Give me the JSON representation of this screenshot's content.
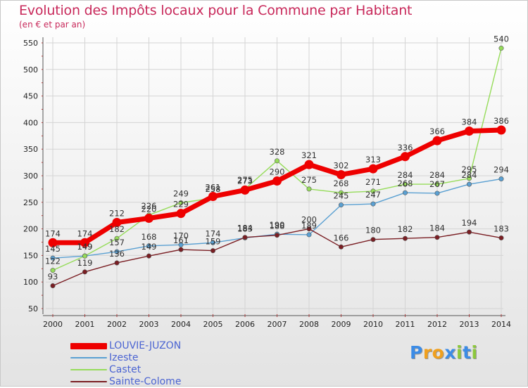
{
  "header": {
    "title": "Evolution des Impôts locaux pour la Commune par Habitant",
    "subtitle": "(en € et par an)"
  },
  "chart_data": {
    "type": "line",
    "title": "Evolution des Impôts locaux pour la Commune par Habitant",
    "subtitle": "(en € et par an)",
    "xlabel": "",
    "ylabel": "",
    "ylim": [
      50,
      550
    ],
    "yticks": [
      "50",
      "100",
      "150",
      "200",
      "250",
      "300",
      "350",
      "400",
      "450",
      "500",
      "550"
    ],
    "categories": [
      "2000",
      "2001",
      "2002",
      "2003",
      "2004",
      "2005",
      "2006",
      "2007",
      "2008",
      "2009",
      "2010",
      "2011",
      "2012",
      "2013",
      "2014"
    ],
    "legend_position": "bottom-left",
    "series": [
      {
        "name": "LOUVIE-JUZON",
        "color": "#ee0000",
        "values": [
          174,
          174,
          212,
          220,
          229,
          261,
          273,
          290,
          321,
          302,
          313,
          336,
          366,
          384,
          386
        ]
      },
      {
        "name": "Izeste",
        "color": "#5aa0d2",
        "values": [
          145,
          149,
          157,
          168,
          170,
          174,
          183,
          190,
          189,
          245,
          247,
          268,
          267,
          284,
          294
        ]
      },
      {
        "name": "Castet",
        "color": "#96dc5a",
        "values": [
          122,
          149,
          182,
          226,
          249,
          258,
          275,
          328,
          275,
          268,
          271,
          284,
          284,
          295,
          540
        ]
      },
      {
        "name": "Sainte-Colome",
        "color": "#7a1e23",
        "values": [
          93,
          119,
          136,
          149,
          161,
          159,
          184,
          188,
          200,
          166,
          180,
          182,
          184,
          194,
          183
        ]
      }
    ],
    "data_labels": [
      {
        "series": "LOUVIE-JUZON",
        "index": 0,
        "text": "174"
      },
      {
        "series": "LOUVIE-JUZON",
        "index": 1,
        "text": "174"
      },
      {
        "series": "LOUVIE-JUZON",
        "index": 2,
        "text": "212"
      },
      {
        "series": "LOUVIE-JUZON",
        "index": 3,
        "text": "220"
      },
      {
        "series": "LOUVIE-JUZON",
        "index": 4,
        "text": "229"
      },
      {
        "series": "LOUVIE-JUZON",
        "index": 5,
        "text": "261"
      },
      {
        "series": "LOUVIE-JUZON",
        "index": 6,
        "text": "273"
      },
      {
        "series": "LOUVIE-JUZON",
        "index": 7,
        "text": "290"
      },
      {
        "series": "LOUVIE-JUZON",
        "index": 8,
        "text": "321"
      },
      {
        "series": "LOUVIE-JUZON",
        "index": 9,
        "text": "302"
      },
      {
        "series": "LOUVIE-JUZON",
        "index": 10,
        "text": "313"
      },
      {
        "series": "LOUVIE-JUZON",
        "index": 11,
        "text": "336"
      },
      {
        "series": "LOUVIE-JUZON",
        "index": 12,
        "text": "366"
      },
      {
        "series": "LOUVIE-JUZON",
        "index": 13,
        "text": "384"
      },
      {
        "series": "LOUVIE-JUZON",
        "index": 14,
        "text": "386"
      },
      {
        "series": "Izeste",
        "index": 0,
        "text": "145"
      },
      {
        "series": "Izeste",
        "index": 1,
        "text": "149"
      },
      {
        "series": "Izeste",
        "index": 2,
        "text": "157"
      },
      {
        "series": "Izeste",
        "index": 3,
        "text": "168"
      },
      {
        "series": "Izeste",
        "index": 4,
        "text": "170"
      },
      {
        "series": "Izeste",
        "index": 5,
        "text": "174"
      },
      {
        "series": "Izeste",
        "index": 6,
        "text": "183"
      },
      {
        "series": "Izeste",
        "index": 7,
        "text": "190"
      },
      {
        "series": "Izeste",
        "index": 8,
        "text": "189"
      },
      {
        "series": "Izeste",
        "index": 9,
        "text": "245"
      },
      {
        "series": "Izeste",
        "index": 10,
        "text": "247"
      },
      {
        "series": "Izeste",
        "index": 11,
        "text": "268"
      },
      {
        "series": "Izeste",
        "index": 12,
        "text": "267"
      },
      {
        "series": "Izeste",
        "index": 13,
        "text": "284"
      },
      {
        "series": "Izeste",
        "index": 14,
        "text": "294"
      },
      {
        "series": "Castet",
        "index": 0,
        "text": "122"
      },
      {
        "series": "Castet",
        "index": 1,
        "text": "149"
      },
      {
        "series": "Castet",
        "index": 2,
        "text": "182"
      },
      {
        "series": "Castet",
        "index": 3,
        "text": "226"
      },
      {
        "series": "Castet",
        "index": 4,
        "text": "249"
      },
      {
        "series": "Castet",
        "index": 5,
        "text": "258"
      },
      {
        "series": "Castet",
        "index": 6,
        "text": "275"
      },
      {
        "series": "Castet",
        "index": 7,
        "text": "328"
      },
      {
        "series": "Castet",
        "index": 8,
        "text": "275"
      },
      {
        "series": "Castet",
        "index": 9,
        "text": "268"
      },
      {
        "series": "Castet",
        "index": 10,
        "text": "271"
      },
      {
        "series": "Castet",
        "index": 11,
        "text": "284"
      },
      {
        "series": "Castet",
        "index": 12,
        "text": "284"
      },
      {
        "series": "Castet",
        "index": 13,
        "text": "295"
      },
      {
        "series": "Castet",
        "index": 14,
        "text": "540"
      },
      {
        "series": "Sainte-Colome",
        "index": 0,
        "text": "93"
      },
      {
        "series": "Sainte-Colome",
        "index": 1,
        "text": "119"
      },
      {
        "series": "Sainte-Colome",
        "index": 2,
        "text": "136"
      },
      {
        "series": "Sainte-Colome",
        "index": 3,
        "text": "149"
      },
      {
        "series": "Sainte-Colome",
        "index": 4,
        "text": "161"
      },
      {
        "series": "Sainte-Colome",
        "index": 5,
        "text": "159"
      },
      {
        "series": "Sainte-Colome",
        "index": 6,
        "text": "184"
      },
      {
        "series": "Sainte-Colome",
        "index": 7,
        "text": "188"
      },
      {
        "series": "Sainte-Colome",
        "index": 8,
        "text": "200"
      },
      {
        "series": "Sainte-Colome",
        "index": 9,
        "text": "166"
      },
      {
        "series": "Sainte-Colome",
        "index": 10,
        "text": "180"
      },
      {
        "series": "Sainte-Colome",
        "index": 11,
        "text": "182"
      },
      {
        "series": "Sainte-Colome",
        "index": 12,
        "text": "184"
      },
      {
        "series": "Sainte-Colome",
        "index": 13,
        "text": "194"
      },
      {
        "series": "Sainte-Colome",
        "index": 14,
        "text": "183"
      }
    ]
  },
  "legend": {
    "items": [
      {
        "label": "LOUVIE-JUZON",
        "color": "#ee0000"
      },
      {
        "label": "Izeste",
        "color": "#5aa0d2"
      },
      {
        "label": "Castet",
        "color": "#96dc5a"
      },
      {
        "label": "Sainte-Colome",
        "color": "#7a1e23"
      }
    ]
  },
  "logo": {
    "text": "Proxiti",
    "letters": [
      "P",
      "r",
      "o",
      "x",
      "i",
      "t",
      "i"
    ],
    "colors": [
      "#3c8ce6",
      "#f0a01e",
      "#f0a01e",
      "#3c8ce6",
      "#8cc83c",
      "#3c8ce6",
      "#8cc83c"
    ]
  }
}
